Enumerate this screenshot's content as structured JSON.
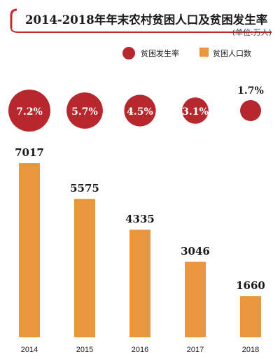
{
  "colors": {
    "rate": "#b7282e",
    "bar": "#e8973f",
    "title_bar": "#c62828",
    "text": "#1a1a1a"
  },
  "chart_data": {
    "type": "bar",
    "title": "2014-2018年年末农村贫困人口及贫困发生率",
    "unit": "(单位:万人)",
    "legend": {
      "rate": "贫困发生率",
      "population": "贫困人口数"
    },
    "categories": [
      "2014",
      "2015",
      "2016",
      "2017",
      "2018"
    ],
    "series": [
      {
        "name": "贫困人口数",
        "values": [
          7017,
          5575,
          4335,
          3046,
          1660
        ],
        "labels": [
          "7017",
          "5575",
          "4335",
          "3046",
          "1660"
        ]
      },
      {
        "name": "贫困发生率",
        "values": [
          7.2,
          5.7,
          4.5,
          3.1,
          1.7
        ],
        "labels": [
          "7.2%",
          "5.7%",
          "4.5%",
          "3.1%",
          "1.7%"
        ]
      }
    ],
    "ylim": [
      0,
      7017
    ]
  }
}
